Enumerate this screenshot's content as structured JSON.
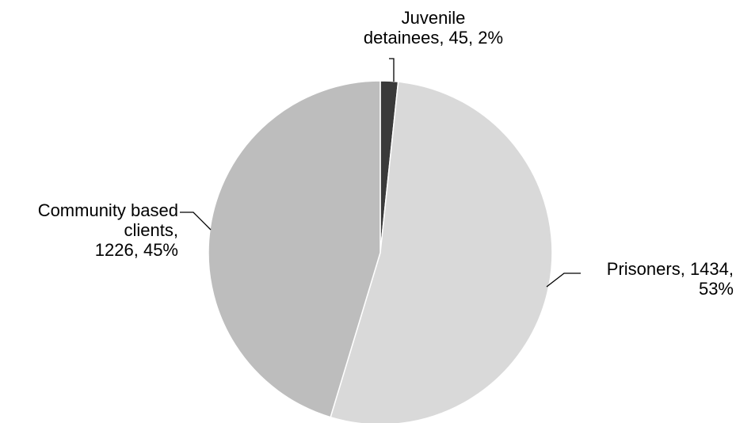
{
  "chart_data": {
    "type": "pie",
    "title": "",
    "slices": [
      {
        "category": "Juvenile detainees",
        "value": 45,
        "percent": "2%",
        "color": "#3a3a3a",
        "label_lines": [
          "Juvenile",
          "detainees, 45, 2%"
        ]
      },
      {
        "category": "Prisoners",
        "value": 1434,
        "percent": "53%",
        "color": "#d9d9d9",
        "label_lines": [
          "Prisoners, 1434,",
          "53%"
        ]
      },
      {
        "category": "Community based clients",
        "value": 1226,
        "percent": "45%",
        "color": "#bdbdbd",
        "label_lines": [
          "Community based",
          "clients,",
          "1226, 45%"
        ]
      }
    ],
    "start_angle": "12 o'clock",
    "direction": "clockwise",
    "legend": "none"
  }
}
